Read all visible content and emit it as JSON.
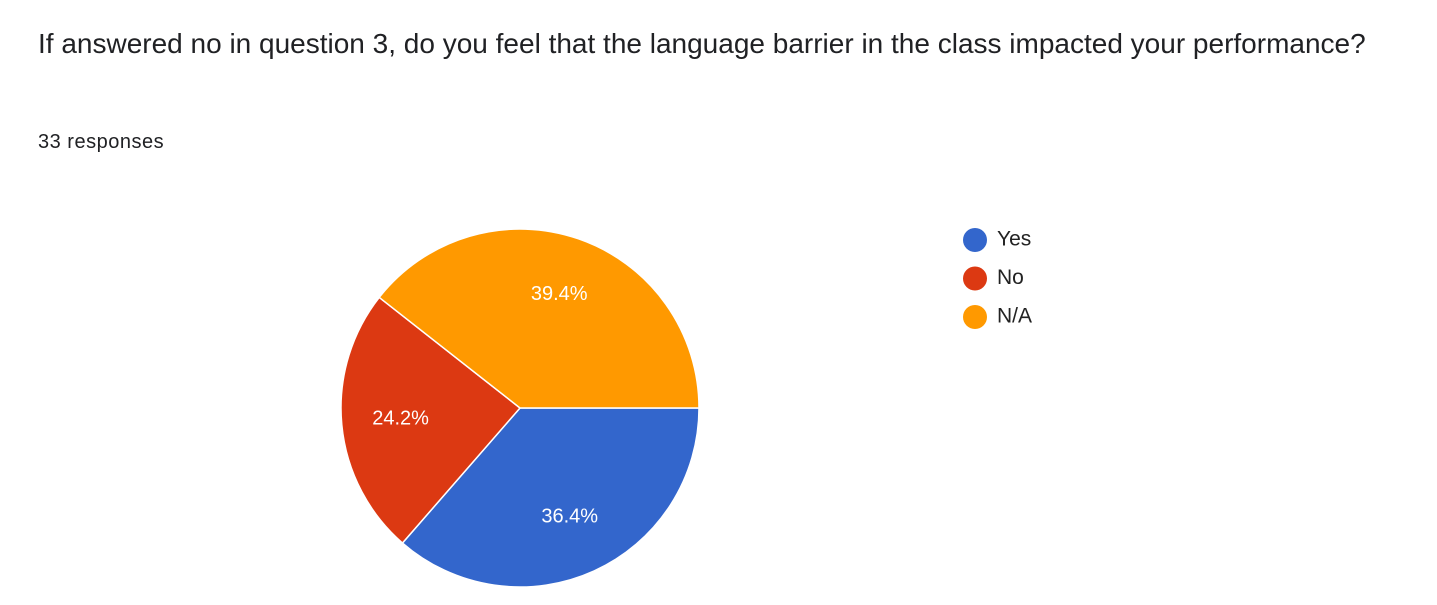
{
  "chart_data": {
    "type": "pie",
    "title": "If answered no in question 3, do you feel that the language barrier in the class impacted your performance?",
    "subtitle": "33 responses",
    "categories": [
      "Yes",
      "No",
      "N/A"
    ],
    "values": [
      36.4,
      24.2,
      39.4
    ],
    "value_labels": [
      "36.4%",
      "24.2%",
      "39.4%"
    ],
    "colors": [
      "#3366cc",
      "#dc3912",
      "#ff9900"
    ],
    "legend": "right"
  }
}
